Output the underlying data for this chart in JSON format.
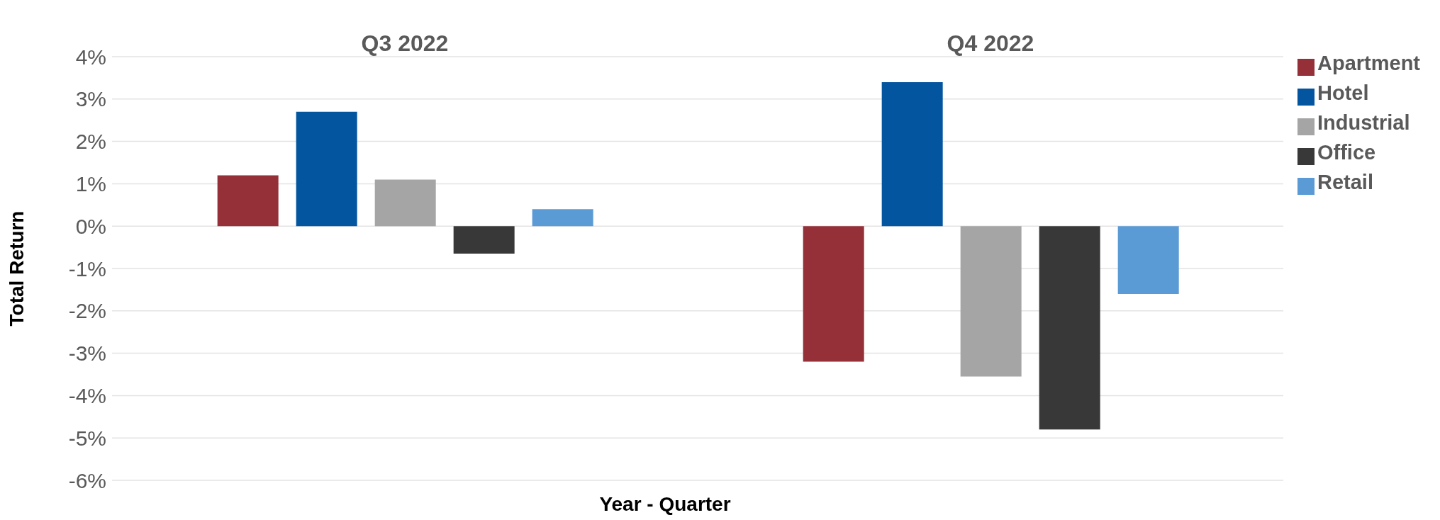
{
  "chart_data": {
    "type": "bar",
    "xlabel": "Year - Quarter",
    "ylabel": "Total Return",
    "categories": [
      "Q3 2022",
      "Q4 2022"
    ],
    "series": [
      {
        "name": "Apartment",
        "color": "#953039",
        "values": [
          1.2,
          -3.2
        ]
      },
      {
        "name": "Hotel",
        "color": "#0455a0",
        "values": [
          2.7,
          3.4
        ]
      },
      {
        "name": "Industrial",
        "color": "#a5a5a5",
        "values": [
          1.1,
          -3.55
        ]
      },
      {
        "name": "Office",
        "color": "#383838",
        "values": [
          -0.65,
          -4.8
        ]
      },
      {
        "name": "Retail",
        "color": "#5b9bd5",
        "values": [
          0.4,
          -1.6
        ]
      }
    ],
    "ylim": [
      -6,
      4
    ],
    "yticks": [
      {
        "value": -6,
        "label": "-6%"
      },
      {
        "value": -5,
        "label": "-5%"
      },
      {
        "value": -4,
        "label": "-4%"
      },
      {
        "value": -3,
        "label": "-3%"
      },
      {
        "value": -2,
        "label": "-2%"
      },
      {
        "value": -1,
        "label": "-1%"
      },
      {
        "value": 0,
        "label": "0%"
      },
      {
        "value": 1,
        "label": "1%"
      },
      {
        "value": 2,
        "label": "2%"
      },
      {
        "value": 3,
        "label": "3%"
      },
      {
        "value": 4,
        "label": "4%"
      }
    ],
    "grid": "y",
    "legend": "top right"
  }
}
